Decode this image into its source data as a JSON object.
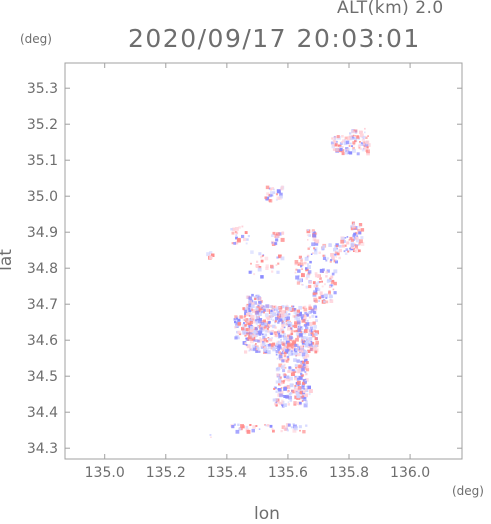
{
  "header": {
    "altitude": "ALT(km)  2.0",
    "datetime": "2020/09/17 20:03:01"
  },
  "chart_data": {
    "type": "scatter",
    "title": "2020/09/17 20:03:01",
    "subtitle": "ALT(km)  2.0",
    "xlabel": "lon",
    "ylabel": "lat",
    "x_unit": "(deg)",
    "y_unit": "(deg)",
    "xlim": [
      134.87,
      136.17
    ],
    "ylim": [
      34.27,
      35.37
    ],
    "x_ticks": [
      "135.0",
      "135.2",
      "135.4",
      "135.6",
      "135.8",
      "136.0"
    ],
    "y_ticks": [
      "34.3",
      "34.4",
      "34.5",
      "34.6",
      "34.7",
      "34.8",
      "34.9",
      "35.0",
      "35.1",
      "35.2",
      "35.3"
    ],
    "grid": false,
    "colors": {
      "positive": "#ff8a8a",
      "negative": "#8a8aff",
      "light_positive": "#ffd0d8",
      "light_negative": "#d0d4ff"
    },
    "clusters": [
      {
        "lon": [
          135.74,
          135.86
        ],
        "lat": [
          35.12,
          35.17
        ],
        "density": 0.9
      },
      {
        "lon": [
          135.8,
          135.85
        ],
        "lat": [
          35.15,
          35.19
        ],
        "density": 0.7
      },
      {
        "lon": [
          135.52,
          135.58
        ],
        "lat": [
          34.99,
          35.03
        ],
        "density": 0.7
      },
      {
        "lon": [
          135.66,
          135.69
        ],
        "lat": [
          34.84,
          34.91
        ],
        "density": 0.7
      },
      {
        "lon": [
          135.7,
          135.77
        ],
        "lat": [
          34.82,
          34.87
        ],
        "density": 0.6
      },
      {
        "lon": [
          135.77,
          135.82
        ],
        "lat": [
          34.84,
          34.89
        ],
        "density": 0.6
      },
      {
        "lon": [
          135.8,
          135.84
        ],
        "lat": [
          34.85,
          34.93
        ],
        "density": 0.8
      },
      {
        "lon": [
          135.62,
          135.67
        ],
        "lat": [
          34.75,
          34.84
        ],
        "density": 0.5
      },
      {
        "lon": [
          135.68,
          135.75
        ],
        "lat": [
          34.71,
          34.8
        ],
        "density": 0.6
      },
      {
        "lon": [
          135.53,
          135.58
        ],
        "lat": [
          34.87,
          34.91
        ],
        "density": 0.5
      },
      {
        "lon": [
          135.41,
          135.47
        ],
        "lat": [
          34.87,
          34.92
        ],
        "density": 0.4
      },
      {
        "lon": [
          135.33,
          135.35
        ],
        "lat": [
          34.82,
          34.85
        ],
        "density": 0.6
      },
      {
        "lon": [
          135.47,
          135.58
        ],
        "lat": [
          34.78,
          34.85
        ],
        "density": 0.2
      },
      {
        "lon": [
          135.46,
          135.52
        ],
        "lat": [
          34.68,
          34.73
        ],
        "density": 0.8
      },
      {
        "lon": [
          135.45,
          135.69
        ],
        "lat": [
          34.57,
          34.7
        ],
        "density": 0.95
      },
      {
        "lon": [
          135.42,
          135.48
        ],
        "lat": [
          34.61,
          34.67
        ],
        "density": 0.9
      },
      {
        "lon": [
          135.56,
          135.66
        ],
        "lat": [
          34.49,
          34.59
        ],
        "density": 0.9
      },
      {
        "lon": [
          135.55,
          135.66
        ],
        "lat": [
          34.42,
          34.49
        ],
        "density": 0.7
      },
      {
        "lon": [
          135.62,
          135.67
        ],
        "lat": [
          34.44,
          34.49
        ],
        "density": 0.6
      },
      {
        "lon": [
          135.41,
          135.66
        ],
        "lat": [
          34.35,
          34.37
        ],
        "density": 0.5
      },
      {
        "lon": [
          135.34,
          135.36
        ],
        "lat": [
          34.33,
          34.34
        ],
        "density": 0.6
      }
    ]
  }
}
